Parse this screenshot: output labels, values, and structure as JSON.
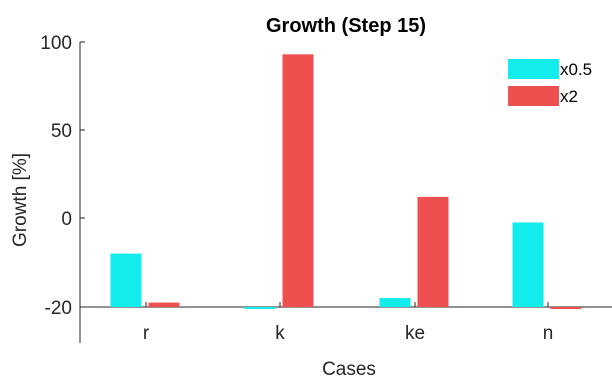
{
  "chart_data": {
    "type": "bar",
    "title": "Growth (Step 15)",
    "xlabel": "Cases",
    "ylabel": "Growth [%]",
    "categories": [
      "r",
      "k",
      "ke",
      "n"
    ],
    "series": [
      {
        "name": "x0.5",
        "color": "#12ecec",
        "values": [
          -8,
          -21,
          -18,
          -1
        ]
      },
      {
        "name": "x2",
        "color": "#ee4f4f",
        "values": [
          -19,
          93,
          12,
          -24
        ]
      }
    ],
    "ylim": [
      -20,
      100
    ],
    "yticks": [
      100,
      50,
      0,
      -20
    ],
    "grid": false,
    "legend": "top-right"
  }
}
